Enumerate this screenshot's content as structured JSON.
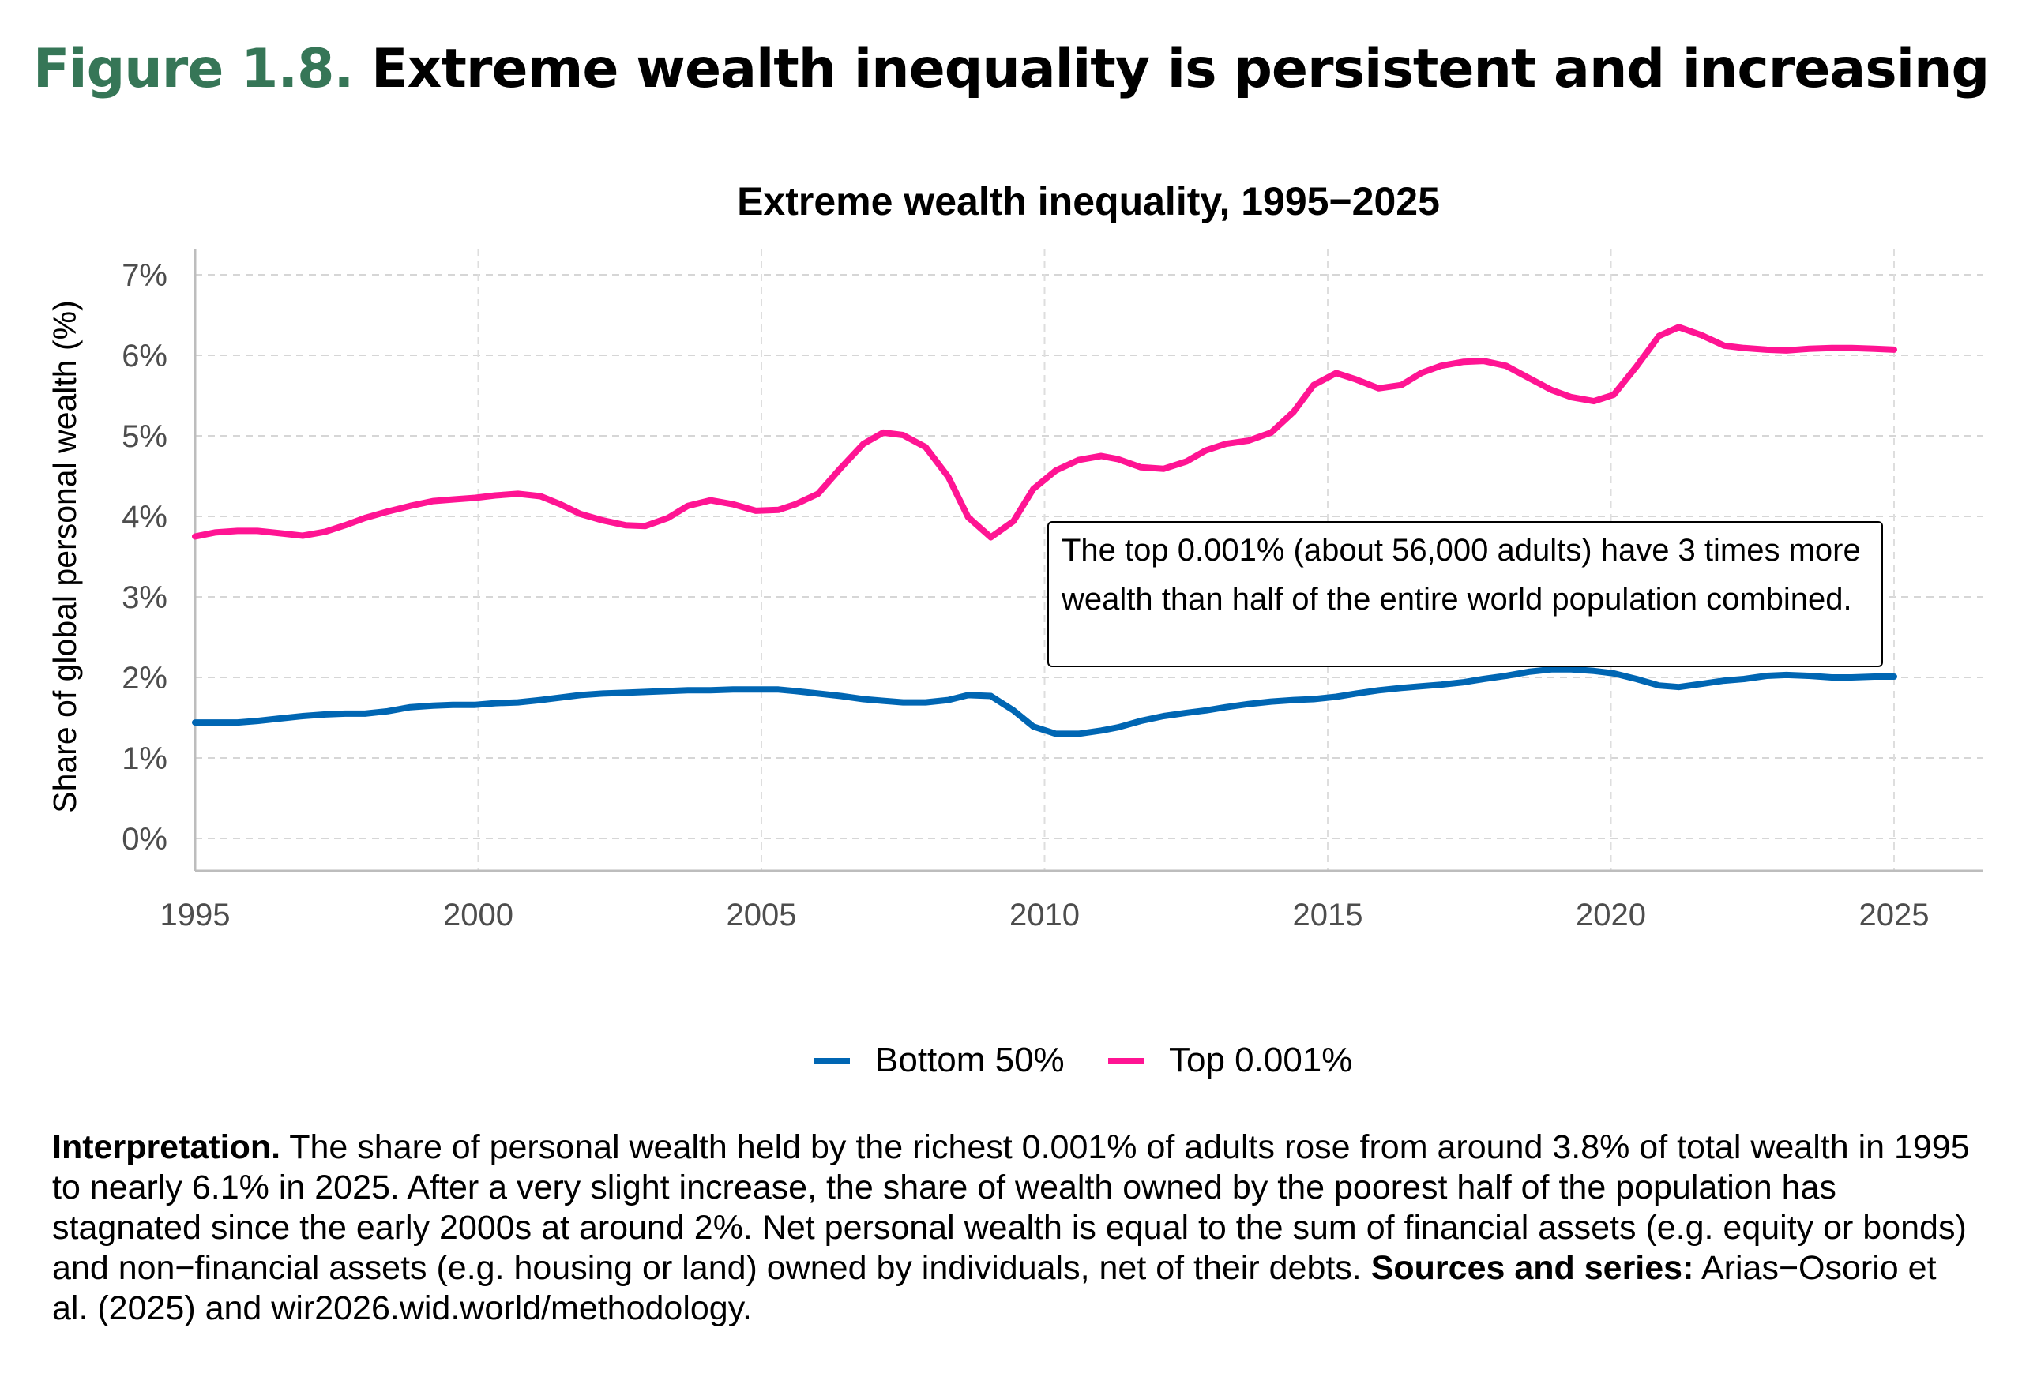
{
  "figure": {
    "number": "Figure 1.8.",
    "title": "Extreme wealth inequality is persistent and increasing",
    "title_color": "#367657"
  },
  "chart_data": {
    "type": "line",
    "title": "Extreme wealth inequality, 1995−2025",
    "xlabel": "",
    "ylabel": "Share of global personal wealth (%)",
    "xlim": [
      1995,
      2025
    ],
    "ylim": [
      0,
      7
    ],
    "x_ticks": [
      "1995",
      "2000",
      "2005",
      "2010",
      "2015",
      "2020",
      "2025"
    ],
    "y_ticks": [
      "0%",
      "1%",
      "2%",
      "3%",
      "4%",
      "5%",
      "6%",
      "7%"
    ],
    "grid": true,
    "legend_position": "bottom",
    "x": [
      1995,
      1995.35,
      1995.75,
      1996.1,
      1996.5,
      1996.9,
      1997.3,
      1997.65,
      1998.0,
      1998.4,
      1998.8,
      1999.2,
      1999.55,
      1999.95,
      2000.3,
      2000.7,
      2001.1,
      2001.45,
      2001.8,
      2002.2,
      2002.6,
      2002.95,
      2003.35,
      2003.7,
      2004.1,
      2004.5,
      2004.9,
      2005.3,
      2005.6,
      2006.0,
      2006.4,
      2006.8,
      2007.15,
      2007.5,
      2007.9,
      2008.3,
      2008.65,
      2009.05,
      2009.45,
      2009.8,
      2010.2,
      2010.6,
      2011.0,
      2011.3,
      2011.7,
      2012.1,
      2012.5,
      2012.85,
      2013.2,
      2013.6,
      2014.0,
      2014.4,
      2014.75,
      2015.15,
      2015.5,
      2015.9,
      2016.3,
      2016.65,
      2017.0,
      2017.4,
      2017.75,
      2018.15,
      2018.55,
      2018.95,
      2019.3,
      2019.7,
      2020.05,
      2020.45,
      2020.85,
      2021.2,
      2021.6,
      2022.0,
      2022.35,
      2022.75,
      2023.1,
      2023.5,
      2023.9,
      2024.25,
      2024.65,
      2025
    ],
    "series": [
      {
        "name": "Bottom 50%",
        "color": "#0066b3",
        "values": [
          1.44,
          1.44,
          1.44,
          1.46,
          1.49,
          1.52,
          1.54,
          1.55,
          1.55,
          1.58,
          1.63,
          1.65,
          1.66,
          1.66,
          1.68,
          1.69,
          1.72,
          1.75,
          1.78,
          1.8,
          1.81,
          1.82,
          1.83,
          1.84,
          1.84,
          1.85,
          1.85,
          1.85,
          1.83,
          1.8,
          1.77,
          1.73,
          1.71,
          1.69,
          1.69,
          1.72,
          1.78,
          1.77,
          1.59,
          1.39,
          1.3,
          1.3,
          1.34,
          1.38,
          1.46,
          1.52,
          1.56,
          1.59,
          1.63,
          1.67,
          1.7,
          1.72,
          1.73,
          1.76,
          1.8,
          1.84,
          1.87,
          1.89,
          1.91,
          1.94,
          1.98,
          2.02,
          2.07,
          2.1,
          2.1,
          2.08,
          2.05,
          1.98,
          1.9,
          1.88,
          1.92,
          1.96,
          1.98,
          2.02,
          2.03,
          2.02,
          2.0,
          2.0,
          2.01,
          2.01
        ]
      },
      {
        "name": "Top 0.001%",
        "color": "#ff1493",
        "values": [
          3.75,
          3.8,
          3.82,
          3.82,
          3.79,
          3.76,
          3.81,
          3.89,
          3.98,
          4.06,
          4.13,
          4.19,
          4.21,
          4.23,
          4.26,
          4.28,
          4.25,
          4.15,
          4.03,
          3.95,
          3.89,
          3.88,
          3.98,
          4.13,
          4.2,
          4.15,
          4.07,
          4.08,
          4.15,
          4.28,
          4.6,
          4.9,
          5.04,
          5.01,
          4.86,
          4.49,
          3.99,
          3.74,
          3.94,
          4.34,
          4.57,
          4.7,
          4.75,
          4.71,
          4.61,
          4.59,
          4.68,
          4.82,
          4.9,
          4.94,
          5.04,
          5.3,
          5.63,
          5.78,
          5.7,
          5.59,
          5.63,
          5.78,
          5.87,
          5.92,
          5.93,
          5.87,
          5.72,
          5.57,
          5.48,
          5.43,
          5.51,
          5.86,
          6.24,
          6.35,
          6.25,
          6.12,
          6.09,
          6.07,
          6.06,
          6.08,
          6.09,
          6.09,
          6.08,
          6.07
        ]
      }
    ],
    "annotation": "The top 0.001% (about 56,000 adults) have 3 times more wealth than half of the entire world population combined."
  },
  "note": {
    "interpretation_label": "Interpretation.",
    "interpretation_text": " The share of personal wealth held by the richest 0.001% of adults rose from around 3.8% of total wealth in 1995 to nearly 6.1% in 2025. After a very slight increase, the share of wealth owned by the poorest half of the population has stagnated since the early 2000s at around 2%. Net personal wealth is equal to the sum of financial assets (e.g. equity or bonds) and non−financial assets (e.g. housing or land) owned by individuals, net of their debts. ",
    "sources_label": "Sources and series:",
    "sources_text": " Arias−Osorio et al. (2025) and wir2026.wid.world/methodology."
  }
}
